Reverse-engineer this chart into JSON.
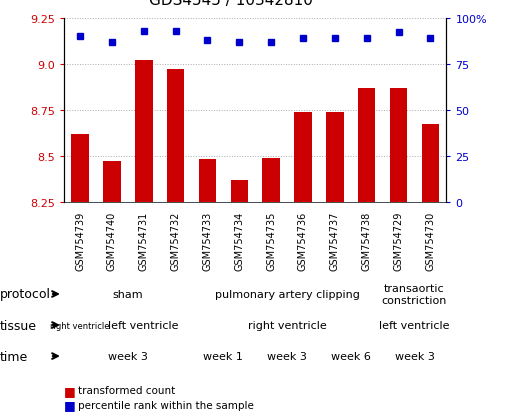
{
  "title": "GDS4545 / 10342810",
  "samples": [
    "GSM754739",
    "GSM754740",
    "GSM754731",
    "GSM754732",
    "GSM754733",
    "GSM754734",
    "GSM754735",
    "GSM754736",
    "GSM754737",
    "GSM754738",
    "GSM754729",
    "GSM754730"
  ],
  "bar_values": [
    8.62,
    8.47,
    9.02,
    8.97,
    8.48,
    8.37,
    8.49,
    8.74,
    8.74,
    8.87,
    8.87,
    8.67
  ],
  "dot_values": [
    90,
    87,
    93,
    93,
    88,
    87,
    87,
    89,
    89,
    89,
    92,
    89
  ],
  "ylim_left": [
    8.25,
    9.25
  ],
  "ylim_right": [
    0,
    100
  ],
  "yticks_left": [
    8.25,
    8.5,
    8.75,
    9.0,
    9.25
  ],
  "yticks_right": [
    0,
    25,
    50,
    75,
    100
  ],
  "bar_color": "#cc0000",
  "dot_color": "#0000cc",
  "grid_color": "#aaaaaa",
  "protocol_row": {
    "label": "protocol",
    "segments": [
      {
        "text": "sham",
        "start": 0,
        "end": 4,
        "color": "#90ee90"
      },
      {
        "text": "pulmonary artery clipping",
        "start": 4,
        "end": 10,
        "color": "#90ee90"
      },
      {
        "text": "transaortic\nconstriction",
        "start": 10,
        "end": 12,
        "color": "#90ee90"
      }
    ]
  },
  "tissue_row": {
    "label": "tissue",
    "segments": [
      {
        "text": "right ventricle",
        "start": 0,
        "end": 1,
        "color": "#b8a8d8"
      },
      {
        "text": "left ventricle",
        "start": 1,
        "end": 4,
        "color": "#b8a8d8"
      },
      {
        "text": "right ventricle",
        "start": 4,
        "end": 10,
        "color": "#b8a8d8"
      },
      {
        "text": "left ventricle",
        "start": 10,
        "end": 12,
        "color": "#b8a8d8"
      }
    ]
  },
  "time_row": {
    "label": "time",
    "segments": [
      {
        "text": "week 3",
        "start": 0,
        "end": 4,
        "color": "#f0a0a0"
      },
      {
        "text": "week 1",
        "start": 4,
        "end": 6,
        "color": "#f8d0d0"
      },
      {
        "text": "week 3",
        "start": 6,
        "end": 8,
        "color": "#f0a0a0"
      },
      {
        "text": "week 6",
        "start": 8,
        "end": 10,
        "color": "#cc6666"
      },
      {
        "text": "week 3",
        "start": 10,
        "end": 12,
        "color": "#f0a0a0"
      }
    ]
  },
  "legend_items": [
    {
      "label": "transformed count",
      "color": "#cc0000"
    },
    {
      "label": "percentile rank within the sample",
      "color": "#0000cc"
    }
  ],
  "bg_color": "#ffffff",
  "xtick_bg": "#d0d0d0",
  "label_fontsize": 9,
  "tick_fontsize": 8,
  "xtick_fontsize": 7,
  "title_fontsize": 11,
  "row_fontsize": 8,
  "small_row_fontsize": 6
}
